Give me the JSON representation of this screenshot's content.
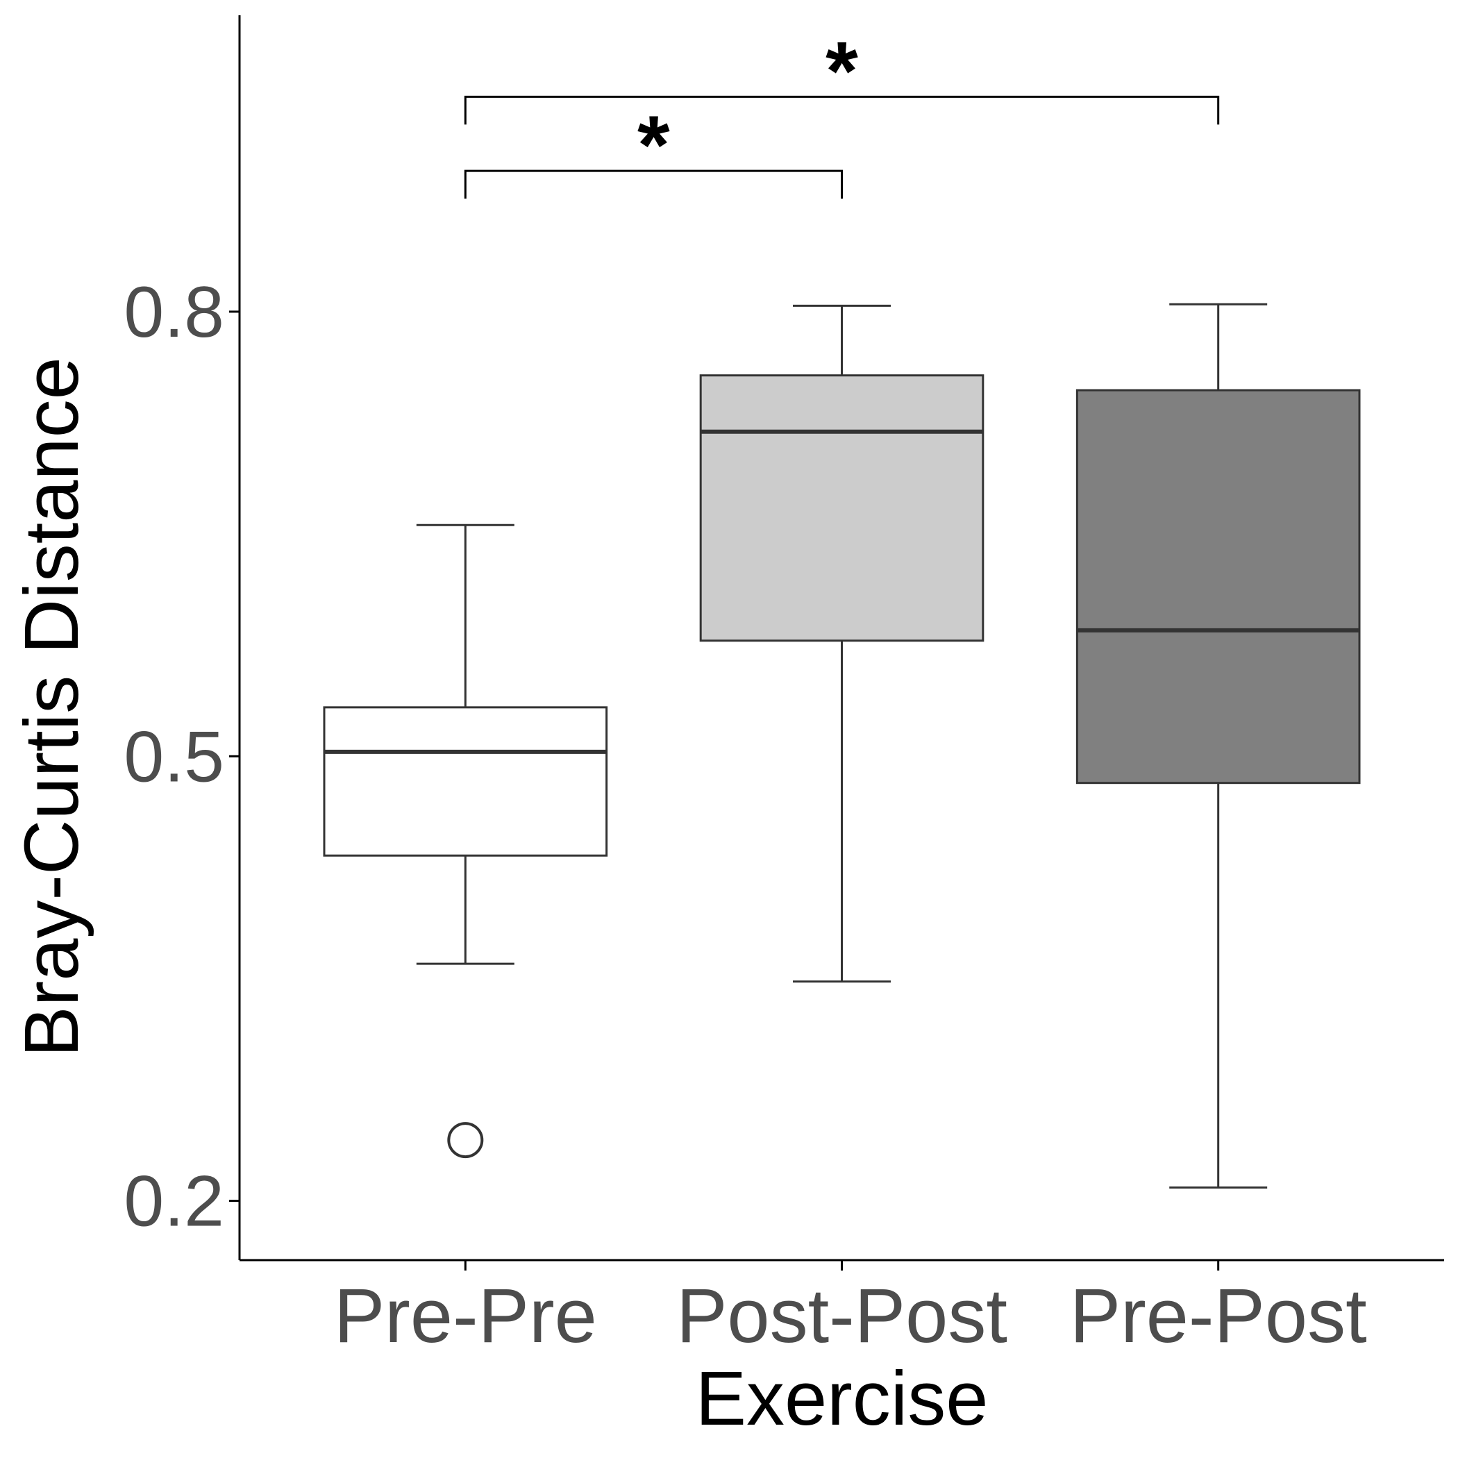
{
  "chart_data": {
    "type": "box",
    "title": "",
    "xlabel": "Exercise",
    "ylabel": "Bray-Curtis Distance",
    "ylim": [
      0.16,
      1.0
    ],
    "yticks": [
      {
        "value": 0.2,
        "label": "0.2"
      },
      {
        "value": 0.5,
        "label": "0.5"
      },
      {
        "value": 0.8,
        "label": "0.8"
      }
    ],
    "categories": [
      "Pre-Pre",
      "Post-Post",
      "Pre-Post"
    ],
    "boxes": [
      {
        "category": "Pre-Pre",
        "whisker_low": 0.36,
        "q1": 0.433,
        "median": 0.503,
        "q3": 0.533,
        "whisker_high": 0.656,
        "outliers": [
          0.241
        ],
        "fill": "#ffffff"
      },
      {
        "category": "Post-Post",
        "whisker_low": 0.348,
        "q1": 0.578,
        "median": 0.719,
        "q3": 0.757,
        "whisker_high": 0.804,
        "outliers": [],
        "fill": "#cccccc"
      },
      {
        "category": "Pre-Post",
        "whisker_low": 0.209,
        "q1": 0.482,
        "median": 0.585,
        "q3": 0.747,
        "whisker_high": 0.805,
        "outliers": [],
        "fill": "#808080"
      }
    ],
    "significance": [
      {
        "from": "Pre-Pre",
        "to": "Post-Post",
        "y": 0.895,
        "label": "*"
      },
      {
        "from": "Pre-Pre",
        "to": "Pre-Post",
        "y": 0.945,
        "label": "*"
      }
    ],
    "grid": false,
    "legend": "none"
  }
}
